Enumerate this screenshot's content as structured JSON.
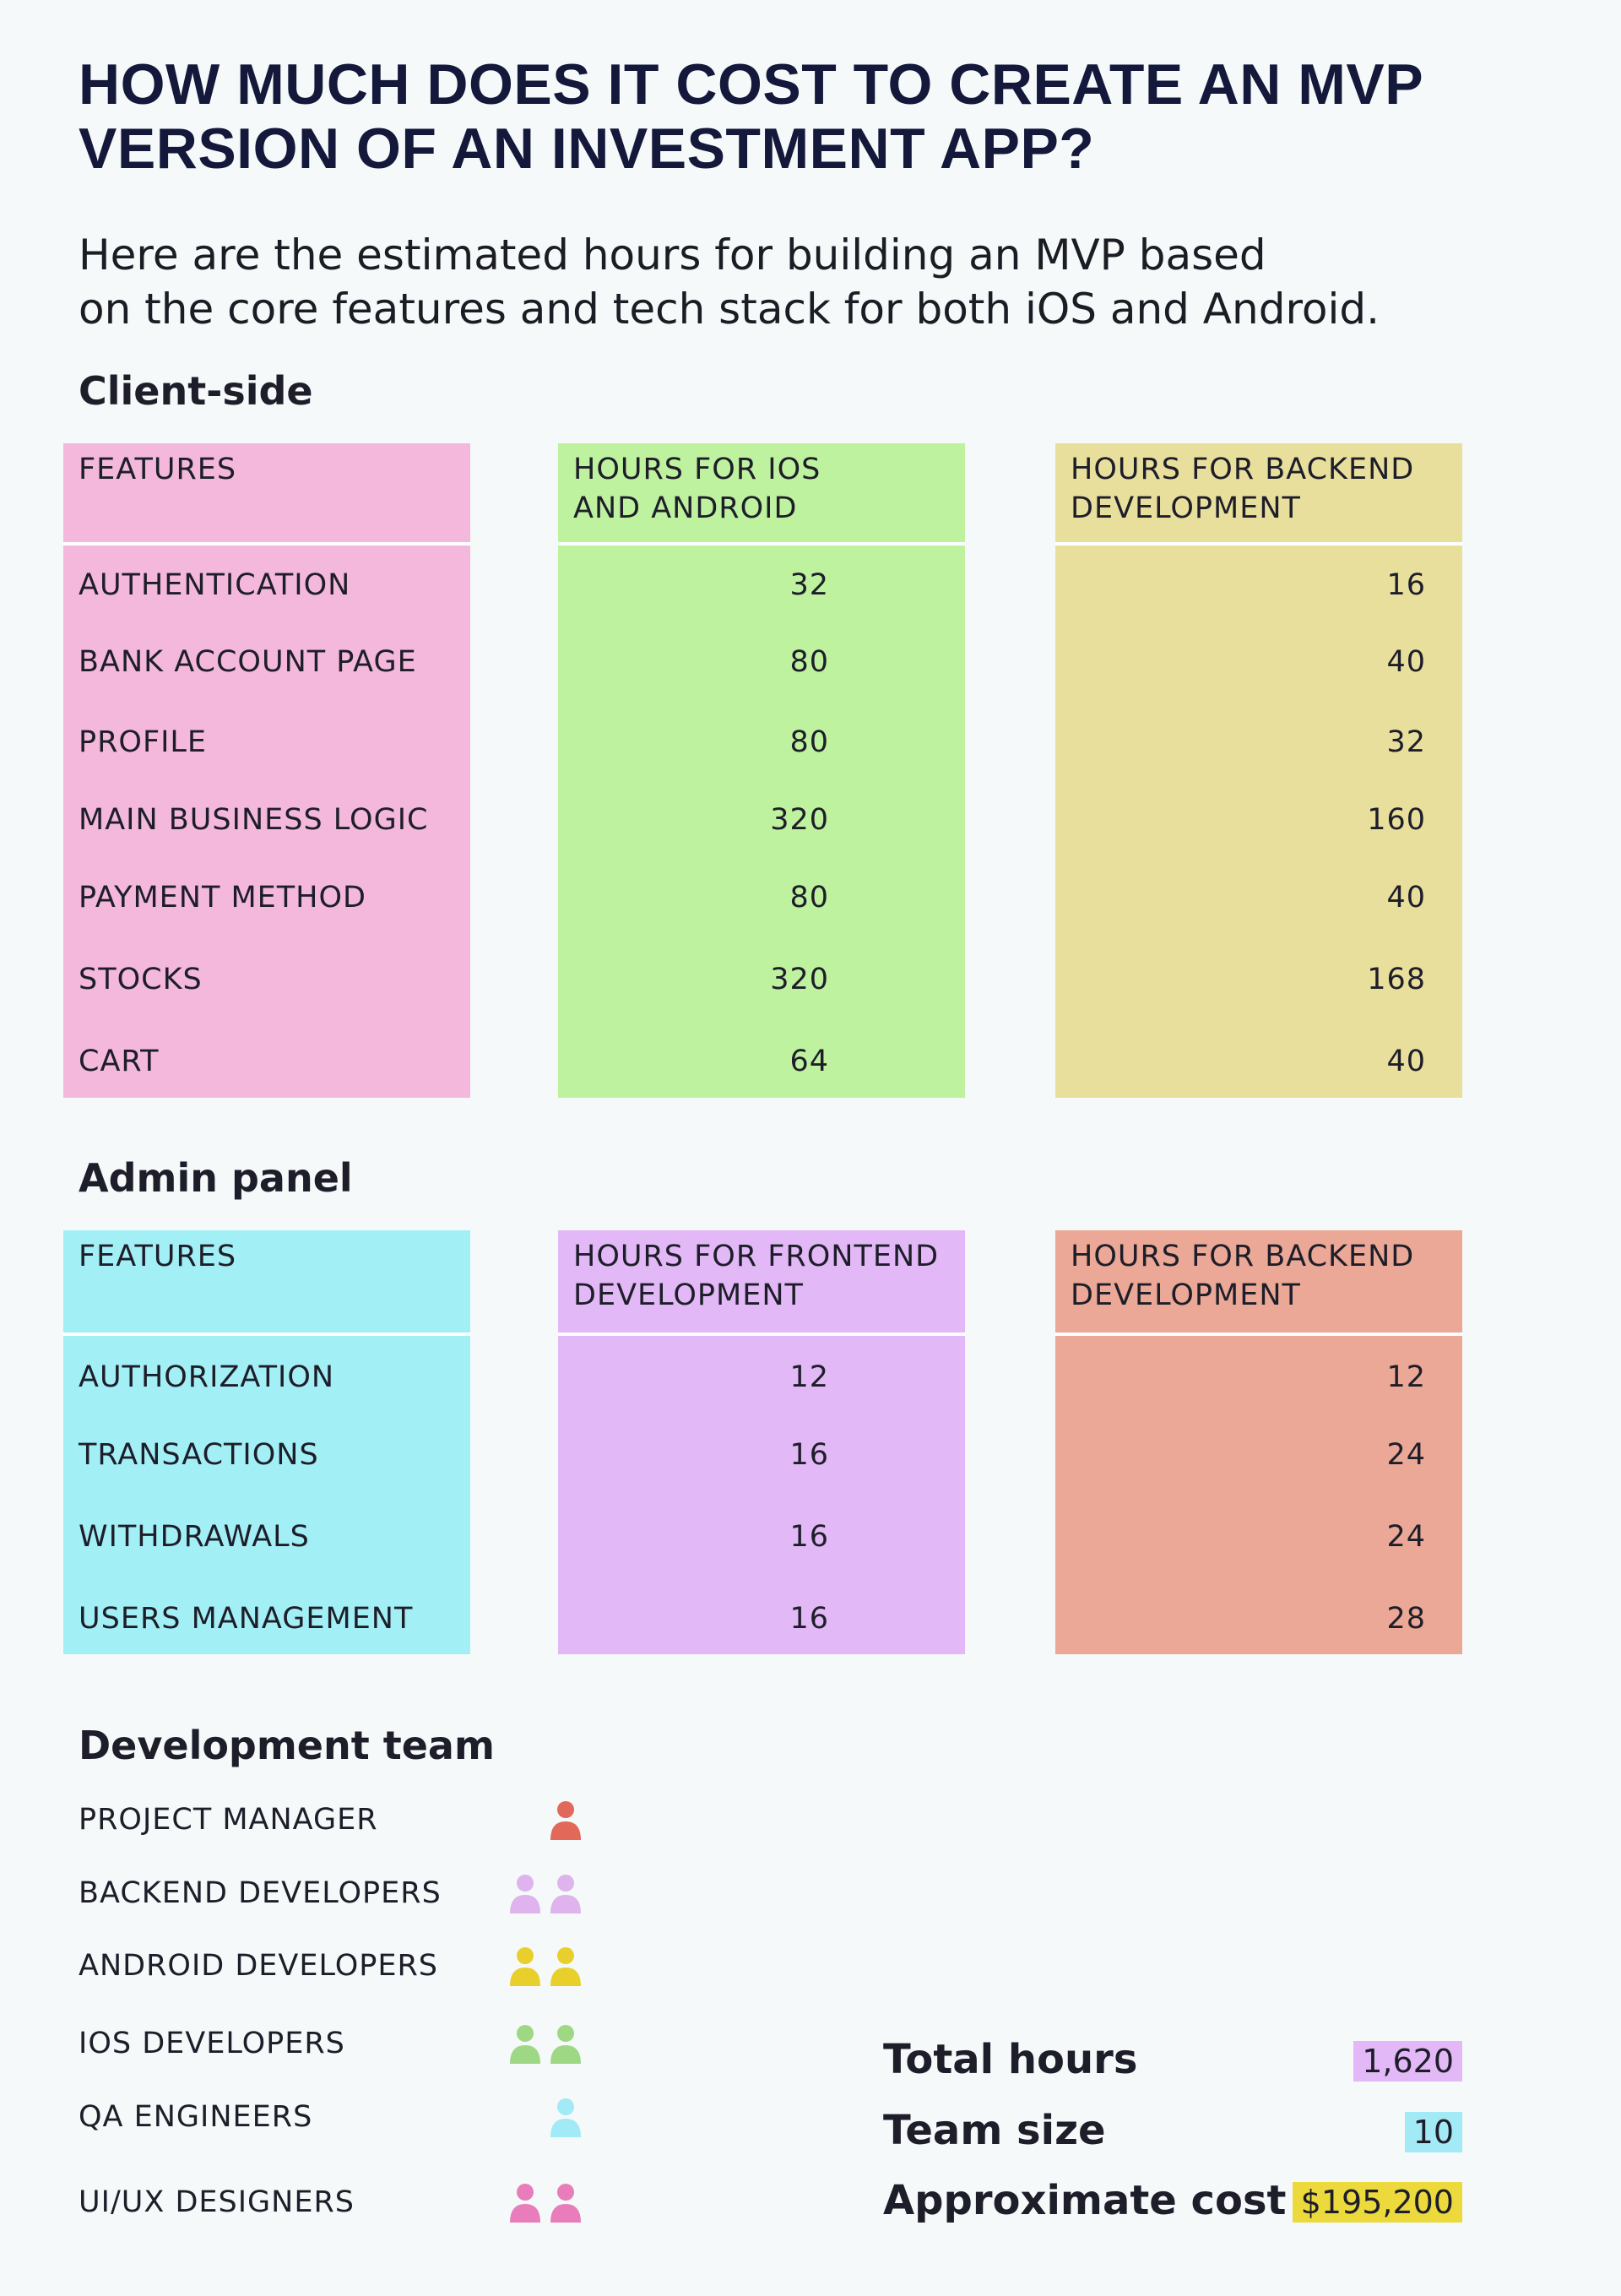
{
  "header": {
    "title": "HOW MUCH DOES IT COST TO CREATE AN MVP\nVERSION OF AN INVESTMENT APP?",
    "subtitle": "Here are the estimated hours for building an MVP based\non the core features and tech stack for both iOS and Android."
  },
  "tables": [
    {
      "title": "Client-side",
      "colors": [
        "#f3b8dc",
        "#bff29f",
        "#e9df9c"
      ],
      "columns": [
        "FEATURES",
        "HOURS FOR IOS\nAND ANDROID",
        "HOURS FOR BACKEND\nDEVELOPMENT"
      ],
      "rows": [
        [
          "AUTHENTICATION",
          32,
          16
        ],
        [
          "BANK ACCOUNT PAGE",
          80,
          40
        ],
        [
          "PROFILE",
          80,
          32
        ],
        [
          "MAIN BUSINESS LOGIC",
          320,
          160
        ],
        [
          "PAYMENT METHOD",
          80,
          40
        ],
        [
          "STOCKS",
          320,
          168
        ],
        [
          "CART",
          64,
          40
        ]
      ]
    },
    {
      "title": "Admin panel",
      "colors": [
        "#a2f0f6",
        "#e2b9f6",
        "#eba896"
      ],
      "columns": [
        "FEATURES",
        "HOURS FOR FRONTEND\nDEVELOPMENT",
        "HOURS FOR BACKEND\nDEVELOPMENT"
      ],
      "rows": [
        [
          "AUTHORIZATION",
          12,
          12
        ],
        [
          "TRANSACTIONS",
          16,
          24
        ],
        [
          "WITHDRAWALS",
          16,
          24
        ],
        [
          "USERS MANAGEMENT",
          16,
          28
        ]
      ]
    }
  ],
  "team": {
    "title": "Development team",
    "members": [
      {
        "role": "PROJECT MANAGER",
        "count": 1,
        "color": "#e2685a"
      },
      {
        "role": "BACKEND DEVELOPERS",
        "count": 2,
        "color": "#deb3ee"
      },
      {
        "role": "ANDROID DEVELOPERS",
        "count": 2,
        "color": "#e9cf2b"
      },
      {
        "role": "IOS DEVELOPERS",
        "count": 2,
        "color": "#9ed884"
      },
      {
        "role": "QA ENGINEERS",
        "count": 1,
        "color": "#a2eaf6"
      },
      {
        "role": "UI/UX DESIGNERS",
        "count": 2,
        "color": "#e97dbb"
      }
    ]
  },
  "summary": [
    {
      "label": "Total hours",
      "value": "1,620",
      "color": "#e2b9f6"
    },
    {
      "label": "Team size",
      "value": "10",
      "color": "#a2eaf6"
    },
    {
      "label": "Approximate cost",
      "value": "$195,200",
      "color": "#ecd93c"
    }
  ]
}
